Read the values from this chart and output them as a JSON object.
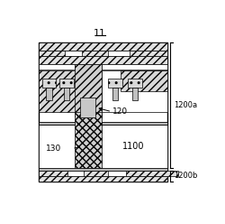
{
  "bg_color": "#ffffff",
  "fig_label": "11",
  "label_120": "120",
  "label_130": "130",
  "label_1100": "1100",
  "label_1200a": "1200a",
  "label_1200b": "1200b",
  "gray_hatch": "#e0e0e0",
  "gray_fill": "#d0d0d0",
  "light_fill": "#c8c8c8",
  "cross_fill": "#cccccc"
}
